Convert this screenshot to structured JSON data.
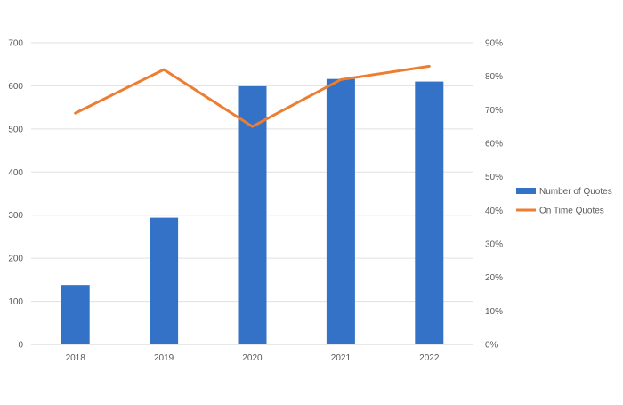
{
  "chart_data": {
    "type": "bar+line",
    "categories": [
      "2018",
      "2019",
      "2020",
      "2021",
      "2022"
    ],
    "series": [
      {
        "name": "Number of Quotes",
        "type": "bar",
        "axis": "left",
        "color": "#3372C6",
        "values": [
          138,
          294,
          599,
          616,
          610
        ]
      },
      {
        "name": "On Time Quotes",
        "type": "line",
        "axis": "right",
        "color": "#ED7D31",
        "values": [
          0.69,
          0.82,
          0.65,
          0.79,
          0.83
        ]
      }
    ],
    "y_left": {
      "range": [
        0,
        700
      ],
      "ticks": [
        "0",
        "100",
        "200",
        "300",
        "400",
        "500",
        "600",
        "700"
      ]
    },
    "y_right": {
      "range": [
        0,
        0.9
      ],
      "ticks": [
        "0%",
        "10%",
        "20%",
        "30%",
        "40%",
        "50%",
        "60%",
        "70%",
        "80%",
        "90%"
      ]
    },
    "grid": true,
    "legend": "right"
  }
}
